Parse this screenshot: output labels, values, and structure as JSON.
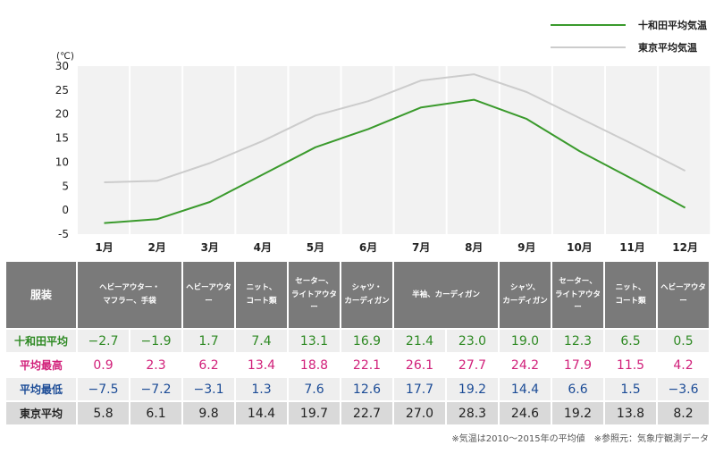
{
  "chart_data": {
    "type": "line",
    "unit_label": "(℃)",
    "categories": [
      "1月",
      "2月",
      "3月",
      "4月",
      "5月",
      "6月",
      "7月",
      "8月",
      "9月",
      "10月",
      "11月",
      "12月"
    ],
    "ylim": [
      -5,
      30
    ],
    "yticks": [
      30,
      25,
      20,
      15,
      10,
      5,
      0,
      -5
    ],
    "series": [
      {
        "name": "十和田平均気温",
        "color": "#3a9a2c",
        "values": [
          -2.7,
          -1.9,
          1.7,
          7.4,
          13.1,
          16.9,
          21.4,
          23.0,
          19.0,
          12.3,
          6.5,
          0.5
        ]
      },
      {
        "name": "東京平均気温",
        "color": "#cccccc",
        "values": [
          5.8,
          6.1,
          9.8,
          14.4,
          19.7,
          22.7,
          27.0,
          28.3,
          24.6,
          19.2,
          13.8,
          8.2
        ]
      }
    ]
  },
  "table": {
    "clothing_label": "服装",
    "clothing_groups": [
      {
        "span": 2,
        "lines": [
          "ヘビーアウター・",
          "マフラー、手袋"
        ]
      },
      {
        "span": 1,
        "lines": [
          "ヘビーアウター"
        ]
      },
      {
        "span": 1,
        "lines": [
          "ニット、",
          "コート類"
        ]
      },
      {
        "span": 1,
        "lines": [
          "セーター、",
          "ライトアウター"
        ]
      },
      {
        "span": 1,
        "lines": [
          "シャツ・",
          "カーディガン"
        ]
      },
      {
        "span": 2,
        "lines": [
          "半袖、カーディガン"
        ]
      },
      {
        "span": 1,
        "lines": [
          "シャツ、",
          "カーディガン"
        ]
      },
      {
        "span": 1,
        "lines": [
          "セーター、",
          "ライトアウター"
        ]
      },
      {
        "span": 1,
        "lines": [
          "ニット、",
          "コート類"
        ]
      },
      {
        "span": 1,
        "lines": [
          "ヘビーアウター"
        ]
      }
    ],
    "rows": [
      {
        "key": "towada",
        "label": "十和田平均",
        "values": [
          "−2.7",
          "−1.9",
          "1.7",
          "7.4",
          "13.1",
          "16.9",
          "21.4",
          "23.0",
          "19.0",
          "12.3",
          "6.5",
          "0.5"
        ]
      },
      {
        "key": "max",
        "label": "平均最高",
        "values": [
          "0.9",
          "2.3",
          "6.2",
          "13.4",
          "18.8",
          "22.1",
          "26.1",
          "27.7",
          "24.2",
          "17.9",
          "11.5",
          "4.2"
        ]
      },
      {
        "key": "min",
        "label": "平均最低",
        "values": [
          "−7.5",
          "−7.2",
          "−3.1",
          "1.3",
          "7.6",
          "12.6",
          "17.7",
          "19.2",
          "14.4",
          "6.6",
          "1.5",
          "−3.6"
        ]
      },
      {
        "key": "tokyo",
        "label": "東京平均",
        "values": [
          "5.8",
          "6.1",
          "9.8",
          "14.4",
          "19.7",
          "22.7",
          "27.0",
          "28.3",
          "24.6",
          "19.2",
          "13.8",
          "8.2"
        ]
      }
    ]
  },
  "footnote": "※気温は2010〜2015年の平均値　※参照元：気象庁観測データ"
}
